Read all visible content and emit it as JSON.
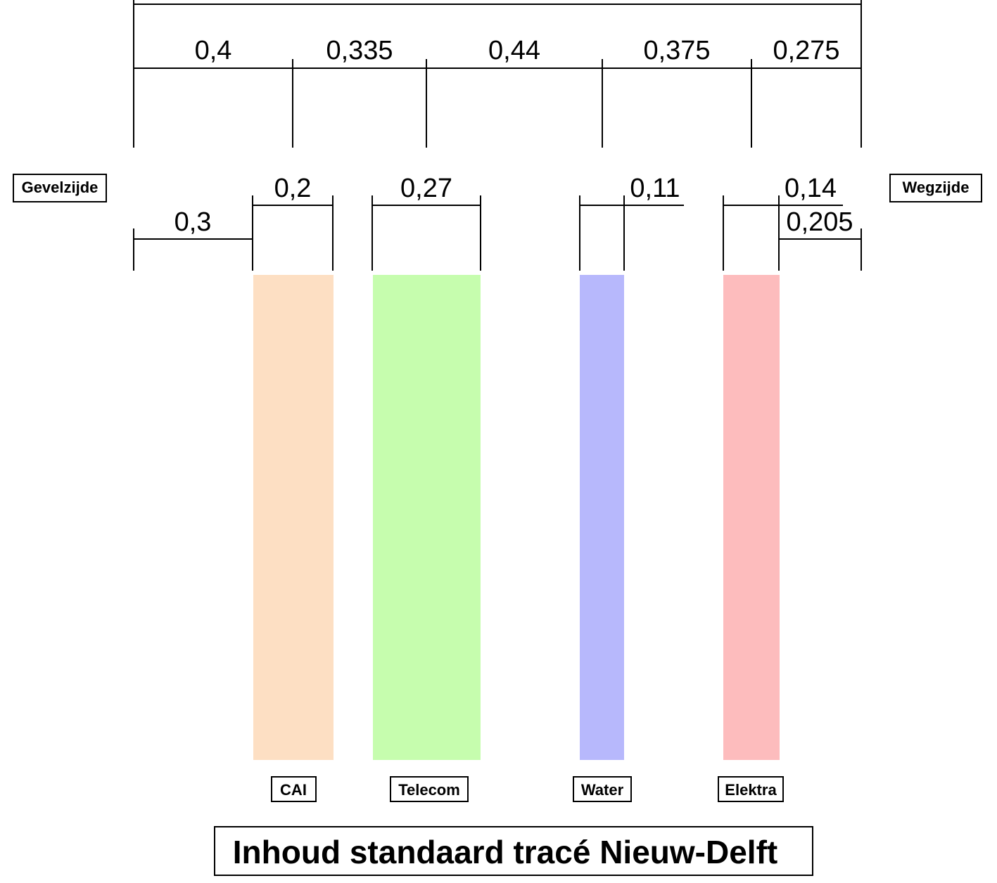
{
  "title": "Inhoud standaard tracé Nieuw-Delft",
  "side_labels": {
    "left": "Gevelzijde",
    "right": "Wegzijde"
  },
  "top_dimensions": [
    "0,4",
    "0,335",
    "0,44",
    "0,375",
    "0,275"
  ],
  "lower_dimensions": {
    "offset_left": "0,3",
    "cai_width": "0,2",
    "telecom_width": "0,27",
    "water_width": "0,11",
    "elektra_width": "0,14",
    "offset_right": "0,205"
  },
  "utilities": [
    {
      "name": "CAI",
      "color": "#fddfc3"
    },
    {
      "name": "Telecom",
      "color": "#c6fdae"
    },
    {
      "name": "Water",
      "color": "#b7b8fc"
    },
    {
      "name": "Elektra",
      "color": "#fdbcbd"
    }
  ]
}
